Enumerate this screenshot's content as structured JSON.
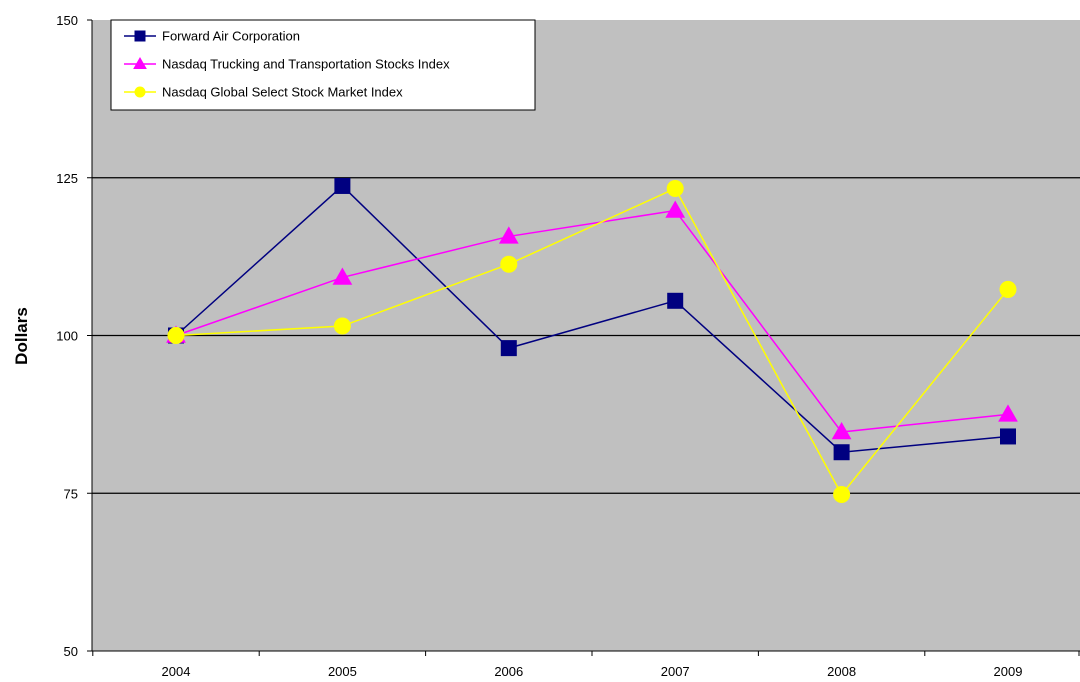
{
  "chart_data": {
    "type": "line",
    "categories": [
      "2004",
      "2005",
      "2006",
      "2007",
      "2008",
      "2009"
    ],
    "series": [
      {
        "name": "Forward Air Corporation",
        "values": [
          100,
          123.7,
          98,
          105.5,
          81.5,
          84
        ],
        "color": "#000080",
        "marker": "square"
      },
      {
        "name": "Nasdaq Trucking and Transportation Stocks Index",
        "values": [
          100,
          109.2,
          115.7,
          119.8,
          84.7,
          87.5
        ],
        "color": "#ff00ff",
        "marker": "triangle"
      },
      {
        "name": "Nasdaq Global Select Stock Market Index",
        "values": [
          100,
          101.5,
          111.3,
          123.3,
          74.8,
          107.3
        ],
        "color": "#ffff00",
        "marker": "circle"
      }
    ],
    "ylabel": "Dollars",
    "xlabel": "",
    "ylim": [
      50,
      150
    ],
    "yticks": [
      "50",
      "75",
      "100",
      "125",
      "150"
    ],
    "grid": true,
    "legend_position": "top-left",
    "plot_background": "#c0c0c0"
  }
}
